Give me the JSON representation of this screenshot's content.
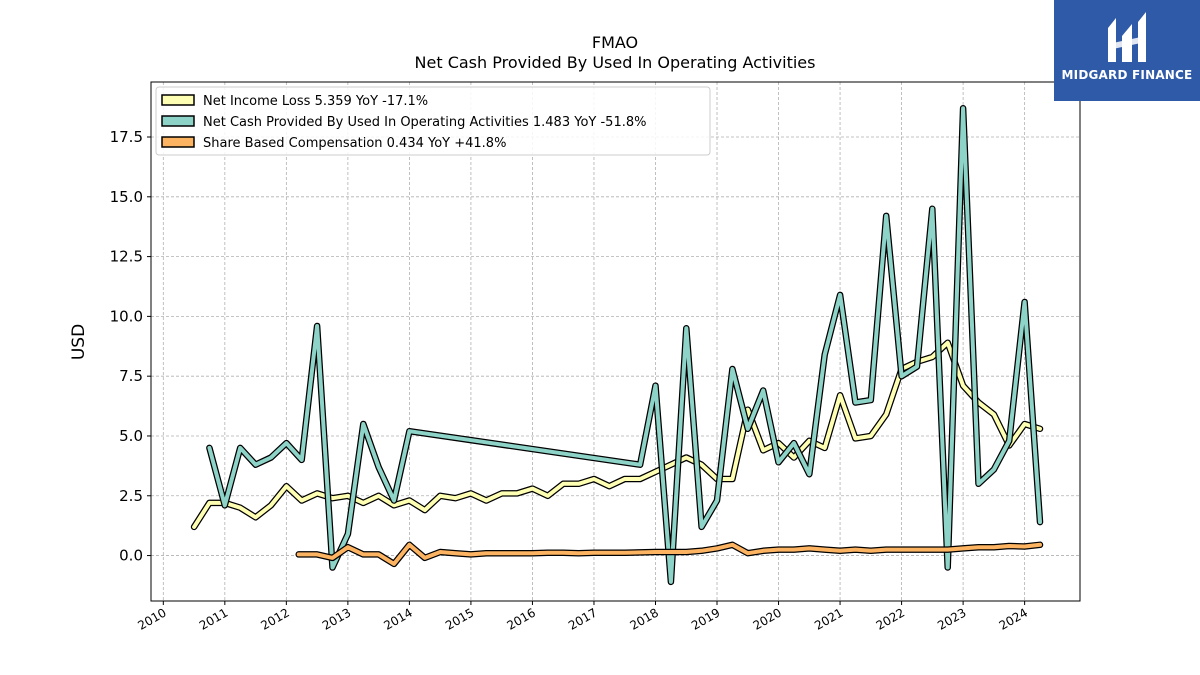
{
  "chart_data": {
    "type": "line",
    "title": "FMAO",
    "subtitle": "Net Cash Provided By Used In Operating Activities",
    "xlabel": "",
    "ylabel": "USD",
    "xlim": [
      2009.8,
      2024.9
    ],
    "ylim": [
      -1.9,
      19.8
    ],
    "x_ticks": [
      "2010",
      "2011",
      "2012",
      "2013",
      "2014",
      "2015",
      "2016",
      "2017",
      "2018",
      "2019",
      "2020",
      "2021",
      "2022",
      "2023",
      "2024"
    ],
    "y_ticks": [
      "0.0",
      "2.5",
      "5.0",
      "7.5",
      "10.0",
      "12.5",
      "15.0",
      "17.5"
    ],
    "grid": true,
    "legend_position": "top-left",
    "series": [
      {
        "name": "Net Income Loss  5.359 YoY -17.1%",
        "color": "#ffffb3",
        "points": [
          [
            2010.5,
            1.2
          ],
          [
            2010.75,
            2.2
          ],
          [
            2011.0,
            2.2
          ],
          [
            2011.25,
            2.0
          ],
          [
            2011.5,
            1.6
          ],
          [
            2011.75,
            2.1
          ],
          [
            2012.0,
            2.9
          ],
          [
            2012.25,
            2.3
          ],
          [
            2012.5,
            2.6
          ],
          [
            2012.75,
            2.4
          ],
          [
            2013.0,
            2.5
          ],
          [
            2013.25,
            2.2
          ],
          [
            2013.5,
            2.5
          ],
          [
            2013.75,
            2.1
          ],
          [
            2014.0,
            2.3
          ],
          [
            2014.25,
            1.9
          ],
          [
            2014.5,
            2.5
          ],
          [
            2014.75,
            2.4
          ],
          [
            2015.0,
            2.6
          ],
          [
            2015.25,
            2.3
          ],
          [
            2015.5,
            2.6
          ],
          [
            2015.75,
            2.6
          ],
          [
            2016.0,
            2.8
          ],
          [
            2016.25,
            2.5
          ],
          [
            2016.5,
            3.0
          ],
          [
            2016.75,
            3.0
          ],
          [
            2017.0,
            3.2
          ],
          [
            2017.25,
            2.9
          ],
          [
            2017.5,
            3.2
          ],
          [
            2017.75,
            3.2
          ],
          [
            2018.0,
            3.5
          ],
          [
            2018.25,
            3.8
          ],
          [
            2018.5,
            4.1
          ],
          [
            2018.75,
            3.8
          ],
          [
            2019.0,
            3.2
          ],
          [
            2019.25,
            3.2
          ],
          [
            2019.5,
            6.1
          ],
          [
            2019.75,
            4.4
          ],
          [
            2020.0,
            4.7
          ],
          [
            2020.25,
            4.1
          ],
          [
            2020.5,
            4.8
          ],
          [
            2020.75,
            4.5
          ],
          [
            2021.0,
            6.7
          ],
          [
            2021.25,
            4.9
          ],
          [
            2021.5,
            5.0
          ],
          [
            2021.75,
            5.9
          ],
          [
            2022.0,
            7.8
          ],
          [
            2022.25,
            8.1
          ],
          [
            2022.5,
            8.3
          ],
          [
            2022.75,
            8.9
          ],
          [
            2023.0,
            7.1
          ],
          [
            2023.25,
            6.4
          ],
          [
            2023.5,
            5.9
          ],
          [
            2023.75,
            4.6
          ],
          [
            2024.0,
            5.5
          ],
          [
            2024.25,
            5.3
          ]
        ]
      },
      {
        "name": "Net Cash Provided By Used In Operating Activities  1.483 YoY -51.8%",
        "color": "#8dd3c7",
        "points": [
          [
            2010.75,
            4.5
          ],
          [
            2011.0,
            2.1
          ],
          [
            2011.25,
            4.5
          ],
          [
            2011.5,
            3.8
          ],
          [
            2011.75,
            4.1
          ],
          [
            2012.0,
            4.7
          ],
          [
            2012.25,
            4.0
          ],
          [
            2012.5,
            9.6
          ],
          [
            2012.75,
            -0.5
          ],
          [
            2013.0,
            0.9
          ],
          [
            2013.25,
            5.5
          ],
          [
            2013.5,
            3.7
          ],
          [
            2013.75,
            2.3
          ],
          [
            2014.0,
            5.2
          ],
          [
            2017.75,
            3.8
          ],
          [
            2018.0,
            7.1
          ],
          [
            2018.25,
            -1.1
          ],
          [
            2018.5,
            9.5
          ],
          [
            2018.75,
            1.2
          ],
          [
            2019.0,
            2.3
          ],
          [
            2019.25,
            7.8
          ],
          [
            2019.5,
            5.3
          ],
          [
            2019.75,
            6.9
          ],
          [
            2020.0,
            3.9
          ],
          [
            2020.25,
            4.7
          ],
          [
            2020.5,
            3.4
          ],
          [
            2020.75,
            8.4
          ],
          [
            2021.0,
            10.9
          ],
          [
            2021.25,
            6.4
          ],
          [
            2021.5,
            6.5
          ],
          [
            2021.75,
            14.2
          ],
          [
            2022.0,
            7.5
          ],
          [
            2022.25,
            7.9
          ],
          [
            2022.5,
            14.5
          ],
          [
            2022.75,
            -0.5
          ],
          [
            2023.0,
            18.7
          ],
          [
            2023.25,
            3.0
          ],
          [
            2023.5,
            3.6
          ],
          [
            2023.75,
            4.8
          ],
          [
            2024.0,
            10.6
          ],
          [
            2024.25,
            1.4
          ]
        ]
      },
      {
        "name": "Share Based Compensation  0.434 YoY +41.8%",
        "color": "#fdb462",
        "points": [
          [
            2012.2,
            0.05
          ],
          [
            2012.5,
            0.05
          ],
          [
            2012.75,
            -0.1
          ],
          [
            2013.0,
            0.35
          ],
          [
            2013.25,
            0.05
          ],
          [
            2013.5,
            0.05
          ],
          [
            2013.75,
            -0.35
          ],
          [
            2014.0,
            0.45
          ],
          [
            2014.25,
            -0.1
          ],
          [
            2014.5,
            0.15
          ],
          [
            2014.75,
            0.1
          ],
          [
            2015.0,
            0.05
          ],
          [
            2015.25,
            0.1
          ],
          [
            2015.5,
            0.1
          ],
          [
            2015.75,
            0.1
          ],
          [
            2016.0,
            0.1
          ],
          [
            2016.25,
            0.12
          ],
          [
            2016.5,
            0.12
          ],
          [
            2016.75,
            0.1
          ],
          [
            2017.0,
            0.12
          ],
          [
            2017.25,
            0.12
          ],
          [
            2017.5,
            0.12
          ],
          [
            2017.75,
            0.13
          ],
          [
            2018.0,
            0.15
          ],
          [
            2018.25,
            0.15
          ],
          [
            2018.5,
            0.15
          ],
          [
            2018.75,
            0.2
          ],
          [
            2019.0,
            0.3
          ],
          [
            2019.25,
            0.45
          ],
          [
            2019.5,
            0.1
          ],
          [
            2019.75,
            0.2
          ],
          [
            2020.0,
            0.25
          ],
          [
            2020.25,
            0.25
          ],
          [
            2020.5,
            0.3
          ],
          [
            2020.75,
            0.25
          ],
          [
            2021.0,
            0.2
          ],
          [
            2021.25,
            0.25
          ],
          [
            2021.5,
            0.2
          ],
          [
            2021.75,
            0.25
          ],
          [
            2022.0,
            0.25
          ],
          [
            2022.25,
            0.25
          ],
          [
            2022.5,
            0.25
          ],
          [
            2022.75,
            0.25
          ],
          [
            2023.0,
            0.3
          ],
          [
            2023.25,
            0.35
          ],
          [
            2023.5,
            0.35
          ],
          [
            2023.75,
            0.4
          ],
          [
            2024.0,
            0.38
          ],
          [
            2024.25,
            0.45
          ]
        ]
      }
    ]
  },
  "logo": {
    "text": "MIDGARD FINANCE",
    "background": "#2f5aa8"
  }
}
